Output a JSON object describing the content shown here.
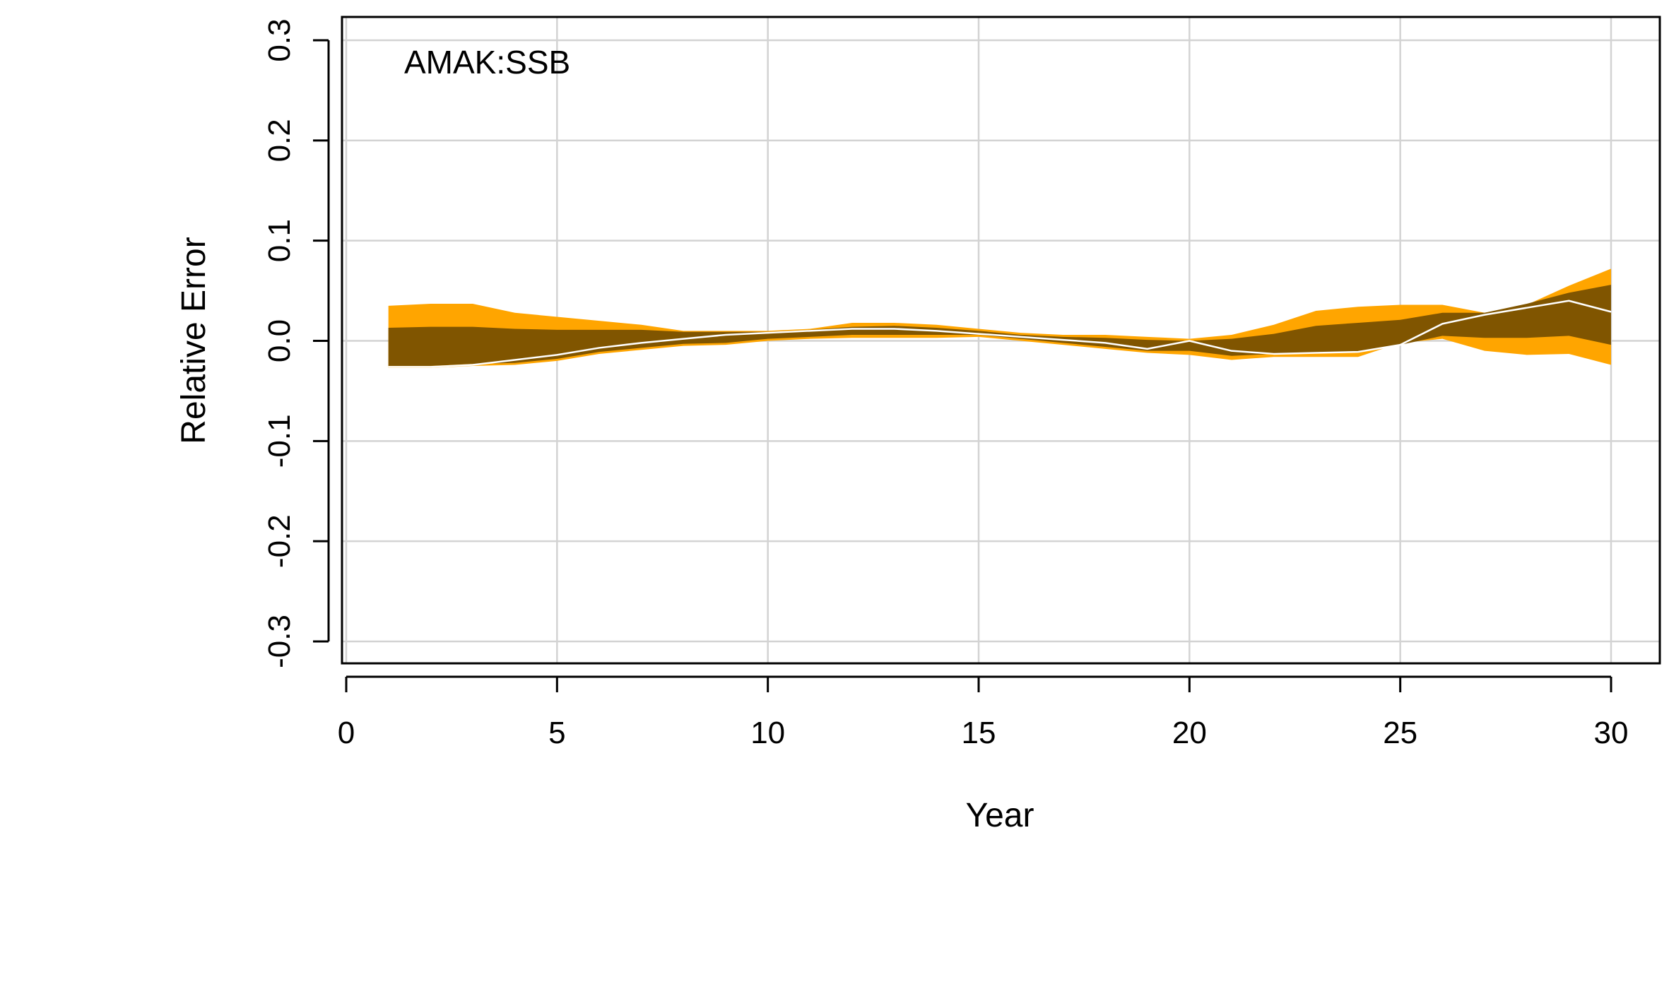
{
  "chart_data": {
    "type": "area",
    "panel_label": "AMAK:SSB",
    "xlabel": "Year",
    "ylabel": "Relative Error",
    "xlim": [
      0,
      30
    ],
    "ylim": [
      -0.3,
      0.3
    ],
    "x_ticks": [
      0,
      5,
      10,
      15,
      20,
      25,
      30
    ],
    "x_tick_labels": [
      "0",
      "5",
      "10",
      "15",
      "20",
      "25",
      "30"
    ],
    "y_ticks": [
      -0.3,
      -0.2,
      -0.1,
      0.0,
      0.1,
      0.2,
      0.3
    ],
    "y_tick_labels": [
      "-0.3",
      "-0.2",
      "-0.1",
      "0.0",
      "0.1",
      "0.2",
      "0.3"
    ],
    "grid": true,
    "x": [
      1,
      2,
      3,
      4,
      5,
      6,
      7,
      8,
      9,
      10,
      11,
      12,
      13,
      14,
      15,
      16,
      17,
      18,
      19,
      20,
      21,
      22,
      23,
      24,
      25,
      26,
      27,
      28,
      29,
      30
    ],
    "outer_band": {
      "upper": [
        0.035,
        0.037,
        0.037,
        0.028,
        0.024,
        0.02,
        0.016,
        0.01,
        0.01,
        0.01,
        0.012,
        0.018,
        0.018,
        0.016,
        0.012,
        0.008,
        0.006,
        0.006,
        0.004,
        0.002,
        0.006,
        0.016,
        0.03,
        0.034,
        0.036,
        0.036,
        0.028,
        0.036,
        0.055,
        0.072
      ],
      "lower": [
        -0.027,
        -0.027,
        -0.025,
        -0.024,
        -0.02,
        -0.013,
        -0.009,
        -0.005,
        -0.004,
        0.0,
        0.002,
        0.003,
        0.003,
        0.003,
        0.004,
        0.0,
        -0.004,
        -0.008,
        -0.012,
        -0.014,
        -0.019,
        -0.016,
        -0.016,
        -0.016,
        -0.002,
        0.002,
        -0.01,
        -0.014,
        -0.013,
        -0.024
      ]
    },
    "inner_band": {
      "upper": [
        0.013,
        0.014,
        0.014,
        0.012,
        0.011,
        0.011,
        0.011,
        0.009,
        0.009,
        0.009,
        0.011,
        0.014,
        0.015,
        0.013,
        0.01,
        0.006,
        0.004,
        0.003,
        0.001,
        0.0,
        0.002,
        0.007,
        0.015,
        0.018,
        0.021,
        0.028,
        0.028,
        0.037,
        0.048,
        0.056
      ],
      "lower": [
        -0.025,
        -0.025,
        -0.023,
        -0.022,
        -0.018,
        -0.011,
        -0.007,
        -0.003,
        -0.002,
        0.002,
        0.004,
        0.006,
        0.006,
        0.006,
        0.006,
        0.002,
        -0.002,
        -0.006,
        -0.01,
        -0.01,
        -0.015,
        -0.013,
        -0.012,
        -0.012,
        -0.004,
        0.005,
        0.003,
        0.003,
        0.005,
        -0.004
      ]
    },
    "median": [
      -0.026,
      -0.026,
      -0.024,
      -0.019,
      -0.014,
      -0.007,
      -0.002,
      0.002,
      0.006,
      0.008,
      0.01,
      0.012,
      0.012,
      0.01,
      0.007,
      0.004,
      0.001,
      -0.002,
      -0.008,
      0.0,
      -0.01,
      -0.013,
      -0.012,
      -0.011,
      -0.004,
      0.017,
      0.026,
      0.033,
      0.04,
      0.029
    ],
    "colors": {
      "outer_band": "#FFA500",
      "inner_band": "#805500",
      "median": "#FFFFFF",
      "grid": "#D3D3D3",
      "axis": "#000000"
    }
  }
}
